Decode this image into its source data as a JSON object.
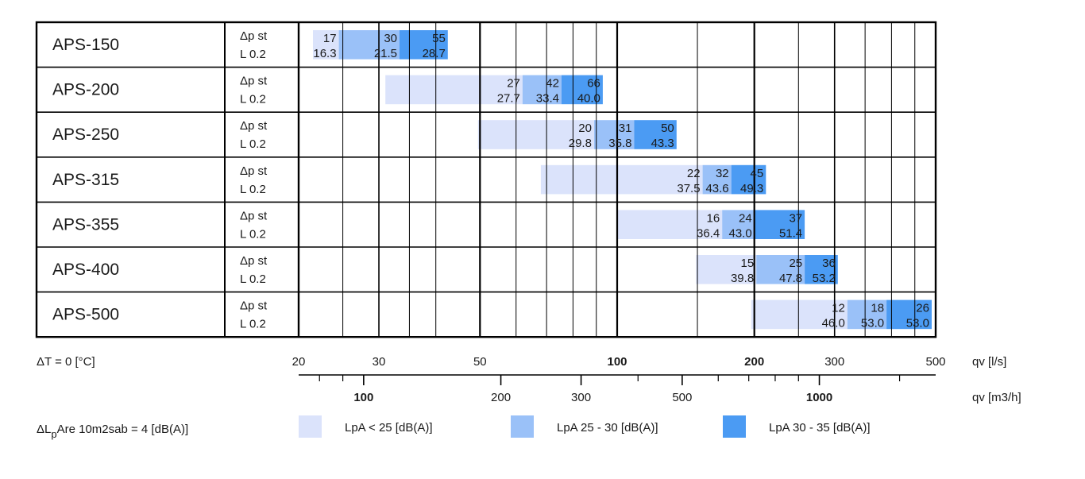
{
  "chart_data": {
    "type": "range-bar",
    "rows": [
      {
        "model": "APS-150",
        "p1": "Δp st",
        "p2": "L 0.2",
        "segs": [
          {
            "from": 21.5,
            "to": 24.5,
            "level": 1,
            "dp": "17",
            "l": "16.3"
          },
          {
            "from": 24.5,
            "to": 33.3,
            "level": 2,
            "dp": "30",
            "l": "21.5"
          },
          {
            "from": 33.3,
            "to": 42.5,
            "level": 3,
            "dp": "55",
            "l": "28.7"
          }
        ]
      },
      {
        "model": "APS-200",
        "p1": "Δp st",
        "p2": "L 0.2",
        "segs": [
          {
            "from": 31,
            "to": 62,
            "level": 1,
            "dp": "27",
            "l": "27.7"
          },
          {
            "from": 62,
            "to": 75.5,
            "level": 2,
            "dp": "42",
            "l": "33.4"
          },
          {
            "from": 75.5,
            "to": 93,
            "level": 3,
            "dp": "66",
            "l": "40.0"
          }
        ]
      },
      {
        "model": "APS-250",
        "p1": "Δp st",
        "p2": "L 0.2",
        "segs": [
          {
            "from": 49.5,
            "to": 89,
            "level": 1,
            "dp": "20",
            "l": "29.8"
          },
          {
            "from": 89,
            "to": 109,
            "level": 2,
            "dp": "31",
            "l": "35.8"
          },
          {
            "from": 109,
            "to": 135,
            "level": 3,
            "dp": "50",
            "l": "43.3"
          }
        ]
      },
      {
        "model": "APS-315",
        "p1": "Δp st",
        "p2": "L 0.2",
        "segs": [
          {
            "from": 68,
            "to": 154,
            "level": 1,
            "dp": "22",
            "l": "37.5"
          },
          {
            "from": 154,
            "to": 178,
            "level": 2,
            "dp": "32",
            "l": "43.6"
          },
          {
            "from": 178,
            "to": 212,
            "level": 3,
            "dp": "45",
            "l": "49.3"
          }
        ]
      },
      {
        "model": "APS-355",
        "p1": "Δp st",
        "p2": "L 0.2",
        "segs": [
          {
            "from": 100,
            "to": 170,
            "level": 1,
            "dp": "16",
            "l": "36.4"
          },
          {
            "from": 170,
            "to": 200,
            "level": 2,
            "dp": "24",
            "l": "43.0"
          },
          {
            "from": 200,
            "to": 258,
            "level": 3,
            "dp": "37",
            "l": "51.4"
          }
        ]
      },
      {
        "model": "APS-400",
        "p1": "Δp st",
        "p2": "L 0.2",
        "segs": [
          {
            "from": 149,
            "to": 202,
            "level": 1,
            "dp": "15",
            "l": "39.8"
          },
          {
            "from": 202,
            "to": 258,
            "level": 2,
            "dp": "25",
            "l": "47.8"
          },
          {
            "from": 258,
            "to": 305,
            "level": 3,
            "dp": "36",
            "l": "53.2"
          }
        ]
      },
      {
        "model": "APS-500",
        "p1": "Δp st",
        "p2": "L 0.2",
        "segs": [
          {
            "from": 197,
            "to": 320,
            "level": 1,
            "dp": "12",
            "l": "46.0"
          },
          {
            "from": 320,
            "to": 390,
            "level": 2,
            "dp": "18",
            "l": "53.0"
          },
          {
            "from": 390,
            "to": 490,
            "level": 3,
            "dp": "26",
            "l": "53.0"
          }
        ]
      }
    ],
    "axis_ls": {
      "unit": "qv [l/s]",
      "min": 20,
      "max": 500,
      "major": [
        20,
        30,
        50,
        100,
        200,
        300,
        500
      ],
      "minor": [
        40,
        60,
        70,
        80,
        90,
        400
      ],
      "labels": [
        "20",
        "30",
        "50",
        "100",
        "200",
        "300",
        "500"
      ],
      "bold": [
        "100",
        "200"
      ]
    },
    "axis_m3h": {
      "unit": "qv [m3/h]",
      "labels": [
        {
          "v": 100,
          "t": "100",
          "bold": true
        },
        {
          "v": 200,
          "t": "200",
          "bold": false
        },
        {
          "v": 300,
          "t": "300",
          "bold": false
        },
        {
          "v": 500,
          "t": "500",
          "bold": false
        },
        {
          "v": 1000,
          "t": "1000",
          "bold": true
        }
      ],
      "minor": [
        80,
        90,
        400,
        600,
        700,
        800,
        900,
        1500
      ]
    },
    "footer": {
      "delta_t": "ΔT = 0 [°C]",
      "delta_l_prefix": "ΔL",
      "delta_l_sub": "p",
      "delta_l_rest": "Are 10m2sab = 4 [dB(A)]"
    },
    "legend": [
      {
        "label": "LpA < 25 [dB(A)]",
        "color": "#dbe3fb"
      },
      {
        "label": "LpA 25 - 30 [dB(A)]",
        "color": "#9ac1f8"
      },
      {
        "label": "LpA 30 - 35 [dB(A)]",
        "color": "#4b9bf3"
      }
    ]
  }
}
